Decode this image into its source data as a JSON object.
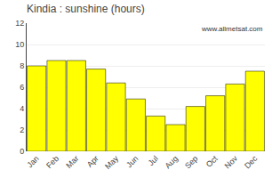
{
  "chart_data": {
    "type": "bar",
    "title": "Kindia : sunshine (hours)",
    "categories": [
      "Jan",
      "Feb",
      "Mar",
      "Apr",
      "May",
      "Jun",
      "Jul",
      "Aug",
      "Sep",
      "Oct",
      "Nov",
      "Dec"
    ],
    "values": [
      8.0,
      8.5,
      8.5,
      7.7,
      6.4,
      4.9,
      3.3,
      2.5,
      4.2,
      5.2,
      6.3,
      7.5
    ],
    "color": "#ffff00",
    "ylim": [
      0,
      12
    ],
    "yticks": [
      0,
      2,
      4,
      6,
      8,
      10,
      12
    ],
    "grid": true,
    "annotations": [
      "www.allmetsat.com"
    ]
  }
}
